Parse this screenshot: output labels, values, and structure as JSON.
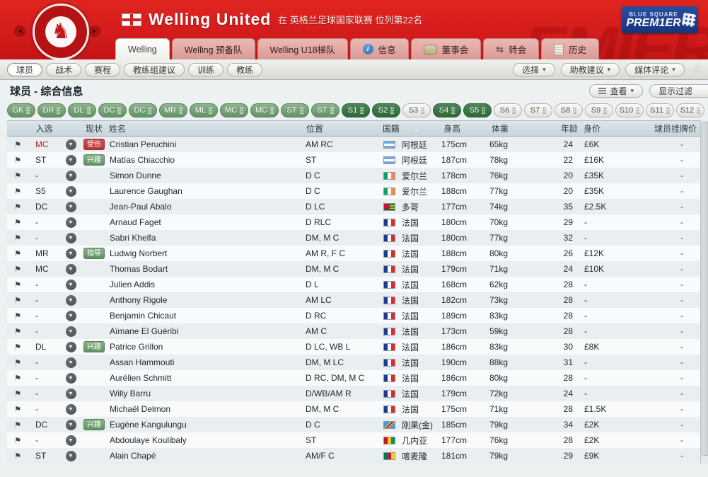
{
  "header": {
    "club_name": "Welling United",
    "club_context": "在 英格兰足球国家联赛 位列第22名",
    "league_logo": {
      "line1": "BLUE SQUARE",
      "line2": "PREM1ER"
    },
    "tabs": [
      {
        "label": "Welling",
        "icon": null,
        "active": true
      },
      {
        "label": "Welling 预备队",
        "icon": null,
        "active": false
      },
      {
        "label": "Welling U18梯队",
        "icon": null,
        "active": false
      },
      {
        "label": "信息",
        "icon": "info-icon",
        "active": false
      },
      {
        "label": "董事会",
        "icon": "boardroom-icon",
        "active": false
      },
      {
        "label": "转会",
        "icon": "transfer-icon",
        "active": false
      },
      {
        "label": "历史",
        "icon": "history-icon",
        "active": false
      }
    ]
  },
  "toolbar": {
    "left": [
      {
        "label": "球员",
        "selected": true
      },
      {
        "label": "战术",
        "selected": false
      },
      {
        "label": "赛程",
        "selected": false
      },
      {
        "label": "教练组建议",
        "selected": false
      },
      {
        "label": "训练",
        "selected": false
      },
      {
        "label": "教练",
        "selected": false
      }
    ],
    "right": [
      {
        "label": "选择",
        "dropdown": true
      },
      {
        "label": "助教建议",
        "dropdown": true
      },
      {
        "label": "媒体评论",
        "dropdown": true
      }
    ],
    "star_icon": "☆"
  },
  "page": {
    "title": "球员 - 综合信息",
    "view_button": "查看",
    "filter_button": "显示过滤"
  },
  "position_filters": [
    {
      "label": "GK",
      "state": "green"
    },
    {
      "label": "DR",
      "state": "green"
    },
    {
      "label": "DL",
      "state": "green"
    },
    {
      "label": "DC",
      "state": "green"
    },
    {
      "label": "DC",
      "state": "green"
    },
    {
      "label": "MR",
      "state": "green"
    },
    {
      "label": "ML",
      "state": "green"
    },
    {
      "label": "MC",
      "state": "green"
    },
    {
      "label": "MC",
      "state": "green"
    },
    {
      "label": "ST",
      "state": "green"
    },
    {
      "label": "ST",
      "state": "green"
    },
    {
      "label": "S1",
      "state": "dark"
    },
    {
      "label": "S2",
      "state": "dark"
    },
    {
      "label": "S3",
      "state": "light"
    },
    {
      "label": "S4",
      "state": "dark"
    },
    {
      "label": "S5",
      "state": "dark"
    },
    {
      "label": "S6",
      "state": "light"
    },
    {
      "label": "S7",
      "state": "light"
    },
    {
      "label": "S8",
      "state": "light"
    },
    {
      "label": "S9",
      "state": "light"
    },
    {
      "label": "S10",
      "state": "light"
    },
    {
      "label": "S11",
      "state": "light"
    },
    {
      "label": "S12",
      "state": "light"
    }
  ],
  "table": {
    "columns": [
      "入选",
      "现状",
      "姓名",
      "位置",
      "国籍",
      "身高",
      "体重",
      "年龄",
      "身价",
      "球员挂牌价"
    ],
    "sorted_column": "国籍",
    "rows": [
      {
        "selection": "MC",
        "selection_color": "red",
        "status": "受伤",
        "status_type": "injured",
        "name": "Cristian Peruchini",
        "position": "AM RC",
        "flag": "argentina",
        "nation": "阿根廷",
        "height": "175cm",
        "weight": "65kg",
        "age": "24",
        "value": "£6K",
        "listed": "-"
      },
      {
        "selection": "ST",
        "selection_color": "",
        "status": "兴趣",
        "status_type": "interest",
        "name": "Matías Chiacchio",
        "position": "ST",
        "flag": "argentina",
        "nation": "阿根廷",
        "height": "187cm",
        "weight": "78kg",
        "age": "22",
        "value": "£16K",
        "listed": "-"
      },
      {
        "selection": "-",
        "selection_color": "",
        "status": "",
        "status_type": "",
        "name": "Simon Dunne",
        "position": "D C",
        "flag": "ireland",
        "nation": "爱尔兰",
        "height": "178cm",
        "weight": "76kg",
        "age": "20",
        "value": "£35K",
        "listed": "-"
      },
      {
        "selection": "S5",
        "selection_color": "",
        "status": "",
        "status_type": "",
        "name": "Laurence Gaughan",
        "position": "D C",
        "flag": "ireland",
        "nation": "爱尔兰",
        "height": "188cm",
        "weight": "77kg",
        "age": "20",
        "value": "£35K",
        "listed": "-"
      },
      {
        "selection": "DC",
        "selection_color": "",
        "status": "",
        "status_type": "",
        "name": "Jean-Paul Abalo",
        "position": "D LC",
        "flag": "togo",
        "nation": "多哥",
        "height": "177cm",
        "weight": "74kg",
        "age": "35",
        "value": "£2.5K",
        "listed": "-"
      },
      {
        "selection": "-",
        "selection_color": "",
        "status": "",
        "status_type": "",
        "name": "Arnaud Faget",
        "position": "D RLC",
        "flag": "france",
        "nation": "法国",
        "height": "180cm",
        "weight": "70kg",
        "age": "29",
        "value": "-",
        "listed": "-"
      },
      {
        "selection": "-",
        "selection_color": "",
        "status": "",
        "status_type": "",
        "name": "Sabri Khelfa",
        "position": "DM, M C",
        "flag": "france",
        "nation": "法国",
        "height": "180cm",
        "weight": "77kg",
        "age": "32",
        "value": "-",
        "listed": "-"
      },
      {
        "selection": "MR",
        "selection_color": "",
        "status": "指导",
        "status_type": "interest",
        "name": "Ludwig Norbert",
        "position": "AM R, F C",
        "flag": "france",
        "nation": "法国",
        "height": "188cm",
        "weight": "80kg",
        "age": "26",
        "value": "£12K",
        "listed": "-"
      },
      {
        "selection": "MC",
        "selection_color": "",
        "status": "",
        "status_type": "",
        "name": "Thomas Bodart",
        "position": "DM, M C",
        "flag": "france",
        "nation": "法国",
        "height": "179cm",
        "weight": "71kg",
        "age": "24",
        "value": "£10K",
        "listed": "-"
      },
      {
        "selection": "-",
        "selection_color": "",
        "status": "",
        "status_type": "",
        "name": "Julien Addis",
        "position": "D L",
        "flag": "france",
        "nation": "法国",
        "height": "168cm",
        "weight": "62kg",
        "age": "28",
        "value": "-",
        "listed": "-"
      },
      {
        "selection": "-",
        "selection_color": "",
        "status": "",
        "status_type": "",
        "name": "Anthony Rigole",
        "position": "AM LC",
        "flag": "france",
        "nation": "法国",
        "height": "182cm",
        "weight": "73kg",
        "age": "28",
        "value": "-",
        "listed": "-"
      },
      {
        "selection": "-",
        "selection_color": "",
        "status": "",
        "status_type": "",
        "name": "Benjamin Chicaut",
        "position": "D RC",
        "flag": "france",
        "nation": "法国",
        "height": "189cm",
        "weight": "83kg",
        "age": "28",
        "value": "-",
        "listed": "-"
      },
      {
        "selection": "-",
        "selection_color": "",
        "status": "",
        "status_type": "",
        "name": "Aïmane El Guéribi",
        "position": "AM C",
        "flag": "france",
        "nation": "法国",
        "height": "173cm",
        "weight": "59kg",
        "age": "28",
        "value": "-",
        "listed": "-"
      },
      {
        "selection": "DL",
        "selection_color": "",
        "status": "兴趣",
        "status_type": "interest",
        "name": "Patrice Grillon",
        "position": "D LC, WB L",
        "flag": "france",
        "nation": "法国",
        "height": "186cm",
        "weight": "83kg",
        "age": "30",
        "value": "£8K",
        "listed": "-"
      },
      {
        "selection": "-",
        "selection_color": "",
        "status": "",
        "status_type": "",
        "name": "Assan Hammouti",
        "position": "DM, M LC",
        "flag": "france",
        "nation": "法国",
        "height": "190cm",
        "weight": "88kg",
        "age": "31",
        "value": "-",
        "listed": "-"
      },
      {
        "selection": "-",
        "selection_color": "",
        "status": "",
        "status_type": "",
        "name": "Aurélien Schmitt",
        "position": "D RC, DM, M C",
        "flag": "france",
        "nation": "法国",
        "height": "186cm",
        "weight": "80kg",
        "age": "28",
        "value": "-",
        "listed": "-"
      },
      {
        "selection": "-",
        "selection_color": "",
        "status": "",
        "status_type": "",
        "name": "Willy Barru",
        "position": "D/WB/AM R",
        "flag": "france",
        "nation": "法国",
        "height": "179cm",
        "weight": "72kg",
        "age": "24",
        "value": "-",
        "listed": "-"
      },
      {
        "selection": "-",
        "selection_color": "",
        "status": "",
        "status_type": "",
        "name": "Michaël Delmon",
        "position": "DM, M C",
        "flag": "france",
        "nation": "法国",
        "height": "175cm",
        "weight": "71kg",
        "age": "28",
        "value": "£1.5K",
        "listed": "-"
      },
      {
        "selection": "DC",
        "selection_color": "",
        "status": "兴趣",
        "status_type": "interest",
        "name": "Eugène Kangulungu",
        "position": "D C",
        "flag": "drcongo",
        "nation": "刚果(金)",
        "height": "185cm",
        "weight": "79kg",
        "age": "34",
        "value": "£2K",
        "listed": "-"
      },
      {
        "selection": "-",
        "selection_color": "",
        "status": "",
        "status_type": "",
        "name": "Abdoulaye Koulibaly",
        "position": "ST",
        "flag": "guinea",
        "nation": "几内亚",
        "height": "177cm",
        "weight": "76kg",
        "age": "28",
        "value": "£2K",
        "listed": "-"
      },
      {
        "selection": "ST",
        "selection_color": "",
        "status": "",
        "status_type": "",
        "name": "Alain Chapé",
        "position": "AM/F C",
        "flag": "cameroon",
        "nation": "喀麦隆",
        "height": "181cm",
        "weight": "79kg",
        "age": "29",
        "value": "£9K",
        "listed": "-"
      }
    ]
  },
  "colors": {
    "header_red": "#d41c1c",
    "filter_green": "#639367",
    "filter_dark_green": "#2d6838",
    "injured_red": "#b23434",
    "interest_green": "#5f9363"
  }
}
